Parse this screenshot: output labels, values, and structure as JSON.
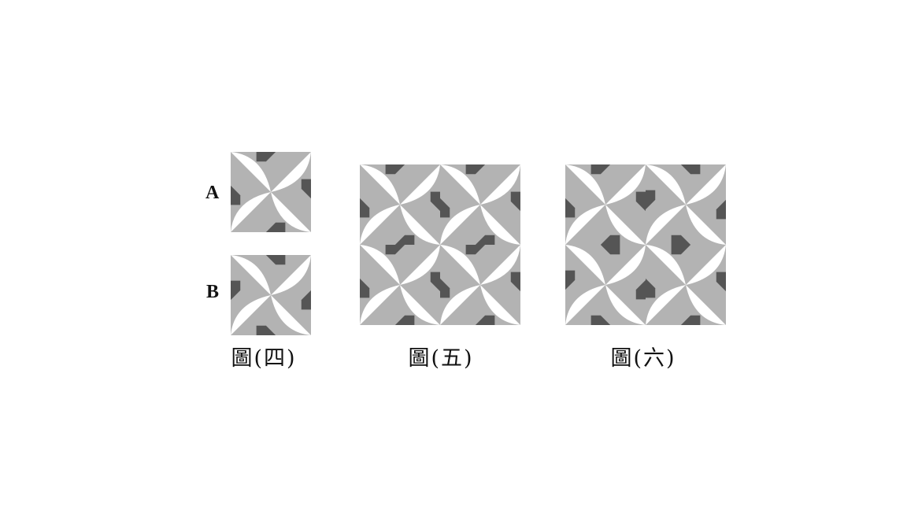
{
  "colors": {
    "light_gray": "#b3b3b3",
    "dark_gray": "#555555",
    "white": "#ffffff"
  },
  "figures": [
    {
      "caption": "圖(四)",
      "tiles": [
        {
          "label": "A",
          "variant": "A"
        },
        {
          "label": "B",
          "variant": "B"
        }
      ]
    },
    {
      "caption": "圖(五)",
      "grid": [
        [
          "A",
          "A"
        ],
        [
          "A",
          "A"
        ]
      ]
    },
    {
      "caption": "圖(六)",
      "grid": [
        [
          "A",
          "B"
        ],
        [
          "B",
          "A"
        ]
      ]
    }
  ]
}
